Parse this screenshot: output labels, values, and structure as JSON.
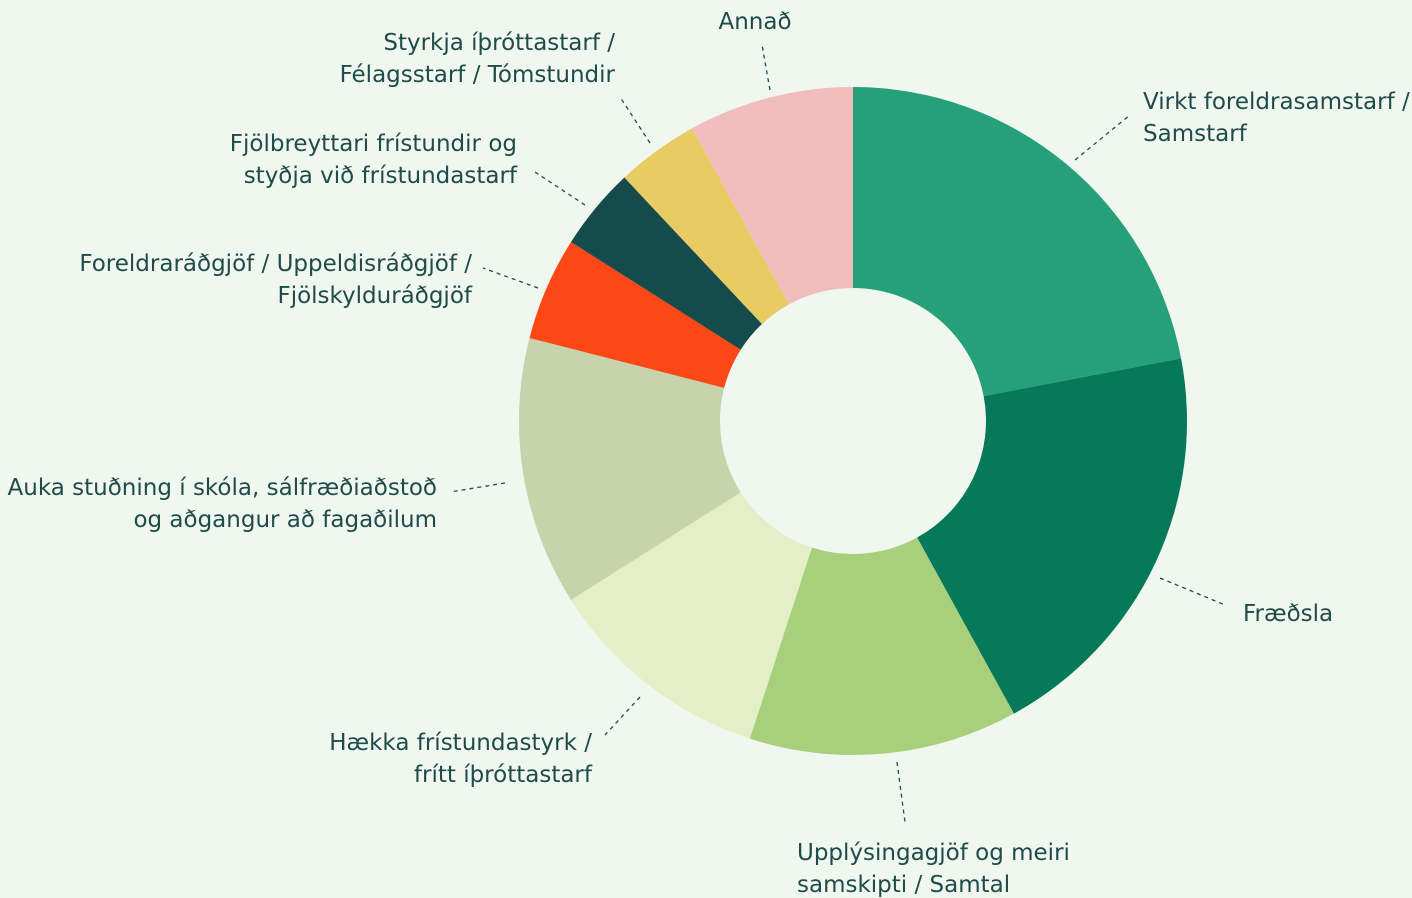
{
  "chart_data": {
    "type": "donut",
    "categories": [
      [
        "Virkt foreldrasamstarf /",
        "Samstarf"
      ],
      [
        "Fræðsla"
      ],
      [
        "Upplýsingagjöf og meiri",
        "samskipti / Samtal"
      ],
      [
        "Hækka frístundastyrk /",
        "frítt íþróttastarf"
      ],
      [
        "Auka stuðning í skóla, sálfræðiaðstoð",
        "og aðgangur að fagaðilum"
      ],
      [
        "Foreldraráðgjöf / Uppeldisráðgjöf /",
        "Fjölskylduráðgjöf"
      ],
      [
        "Fjölbreyttari frístundir og",
        "styðja við frístundastarf"
      ],
      [
        "Styrkja íþróttastarf /",
        "Félagsstarf / Tómstundir"
      ],
      [
        "Annað"
      ]
    ],
    "values": [
      22,
      20,
      13,
      11,
      13,
      5,
      4,
      4,
      8
    ],
    "colors": [
      "#25a078",
      "#06795a",
      "#a8cf7c",
      "#e4efc7",
      "#c6d3ab",
      "#fd4716",
      "#154c4b",
      "#e8cc63",
      "#f1bcbc"
    ]
  }
}
